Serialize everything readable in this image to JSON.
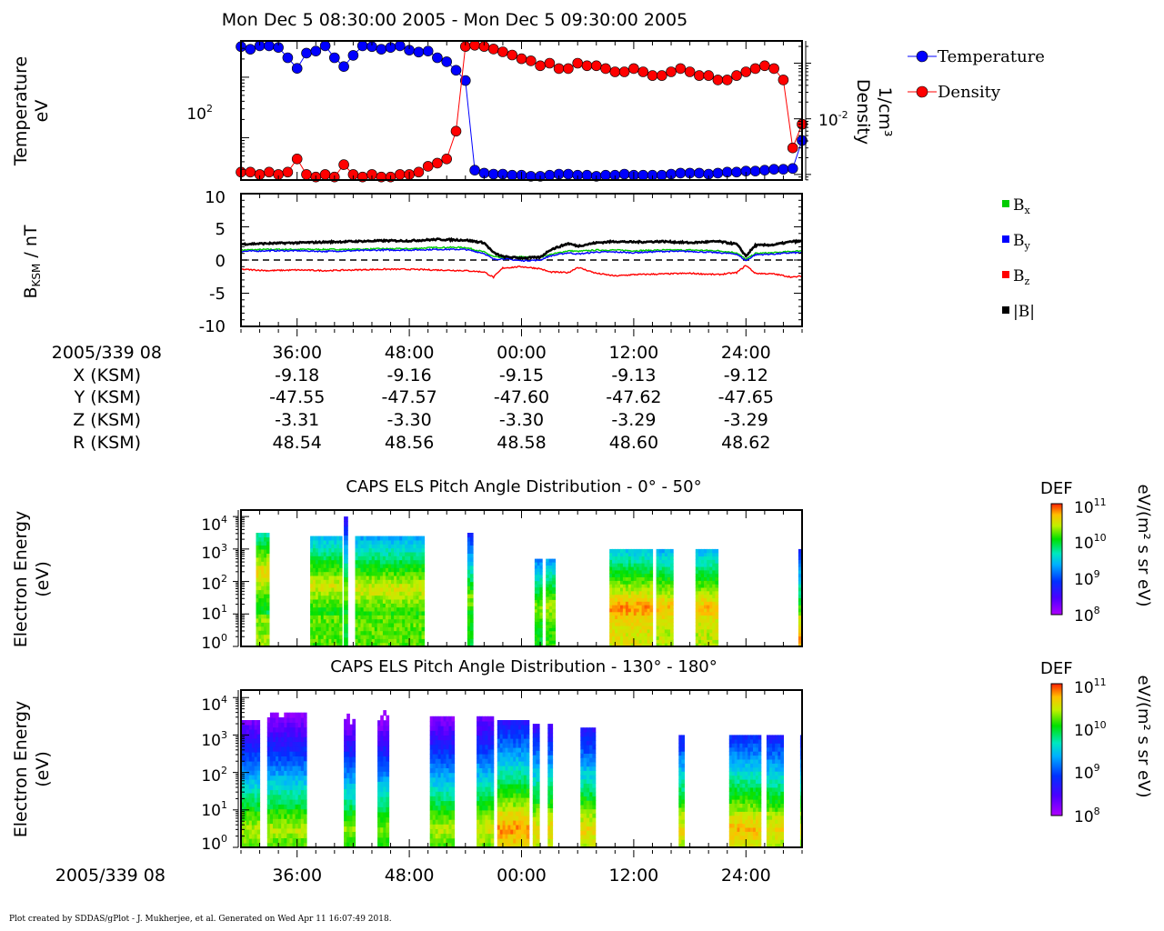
{
  "title": "Mon Dec 5 08:30:00 2005 - Mon Dec 5 09:30:00 2005",
  "footer": "Plot created by SDDAS/gPlot - J. Mukherjee, et al.  Generated on Wed Apr 11 16:07:49 2018.",
  "colors": {
    "temperature": "#0000ff",
    "density": "#ff0000",
    "bx": "#00cc00",
    "by": "#0000ff",
    "bz": "#ff0000",
    "btot": "#000000"
  },
  "panel_moments": {
    "ylabel_left": [
      "Temperature",
      "eV"
    ],
    "ylabel_right": [
      "Density",
      "1/cm³"
    ],
    "left_tick": {
      "base": "10",
      "exp": "2"
    },
    "right_tick": {
      "base": "10",
      "exp": "-2"
    },
    "legend": [
      "Temperature",
      "Density"
    ]
  },
  "panel_mag": {
    "ylabel": "B",
    "ylabel_sub": "KSM",
    "ylabel_unit": " / nT",
    "yticks": [
      "10",
      "5",
      "0",
      "-5",
      "-10"
    ],
    "legend": [
      {
        "text": "B",
        "sub": "x",
        "color_key": "bx"
      },
      {
        "text": "B",
        "sub": "y",
        "color_key": "by"
      },
      {
        "text": "B",
        "sub": "z",
        "color_key": "bz"
      },
      {
        "text": "|B|",
        "sub": "",
        "color_key": "btot"
      }
    ]
  },
  "ephemeris": {
    "rows": [
      {
        "label": "2005/339 08",
        "values": [
          "36:00",
          "48:00",
          "00:00",
          "12:00",
          "24:00"
        ]
      },
      {
        "label": "X (KSM)",
        "values": [
          "-9.18",
          "-9.16",
          "-9.15",
          "-9.13",
          "-9.12"
        ]
      },
      {
        "label": "Y (KSM)",
        "values": [
          "-47.55",
          "-47.57",
          "-47.60",
          "-47.62",
          "-47.65"
        ]
      },
      {
        "label": "Z (KSM)",
        "values": [
          "-3.31",
          "-3.30",
          "-3.30",
          "-3.29",
          "-3.29"
        ]
      },
      {
        "label": "R (KSM)",
        "values": [
          "48.54",
          "48.56",
          "48.58",
          "48.60",
          "48.62"
        ]
      }
    ]
  },
  "spec1": {
    "title": "CAPS ELS Pitch Angle Distribution - 0° - 50°",
    "ylabel": [
      "Electron Energy",
      "(eV)"
    ],
    "yticks": [
      {
        "b": "10",
        "e": "4"
      },
      {
        "b": "10",
        "e": "3"
      },
      {
        "b": "10",
        "e": "2"
      },
      {
        "b": "10",
        "e": "1"
      },
      {
        "b": "10",
        "e": "0"
      }
    ],
    "colorbar_title": "DEF",
    "colorbar_unit": "eV/(m² s sr eV)",
    "colorbar_ticks": [
      {
        "b": "10",
        "e": "11"
      },
      {
        "b": "10",
        "e": "10"
      },
      {
        "b": "10",
        "e": "9"
      },
      {
        "b": "10",
        "e": "8"
      }
    ]
  },
  "spec2": {
    "title": "CAPS ELS Pitch Angle Distribution - 130° - 180°",
    "ylabel": [
      "Electron Energy",
      "(eV)"
    ],
    "yticks": [
      {
        "b": "10",
        "e": "4"
      },
      {
        "b": "10",
        "e": "3"
      },
      {
        "b": "10",
        "e": "2"
      },
      {
        "b": "10",
        "e": "1"
      },
      {
        "b": "10",
        "e": "0"
      }
    ],
    "colorbar_title": "DEF",
    "colorbar_unit": "eV/(m² s sr eV)",
    "colorbar_ticks": [
      {
        "b": "10",
        "e": "11"
      },
      {
        "b": "10",
        "e": "10"
      },
      {
        "b": "10",
        "e": "9"
      },
      {
        "b": "10",
        "e": "8"
      }
    ]
  },
  "bottom_axis": {
    "label": "2005/339 08",
    "ticks": [
      "36:00",
      "48:00",
      "00:00",
      "12:00",
      "24:00"
    ]
  },
  "chart_data": [
    {
      "type": "scatter",
      "xlim_min": [
        30,
        90
      ],
      "x_tick_minutes": [
        36,
        48,
        60,
        72,
        84
      ],
      "series": [
        {
          "name": "Temperature",
          "log_scale": true,
          "x": [
            30,
            31,
            32,
            33,
            34,
            35,
            36,
            37,
            38,
            39,
            40,
            41,
            42,
            43,
            44,
            45,
            46,
            47,
            48,
            49,
            50,
            51,
            52,
            53,
            54,
            55,
            56,
            57,
            58,
            59,
            60,
            61,
            62,
            63,
            64,
            65,
            66,
            67,
            68,
            69,
            70,
            71,
            72,
            73,
            74,
            75,
            76,
            77,
            78,
            79,
            80,
            81,
            82,
            83,
            84,
            85,
            86,
            87,
            88,
            89,
            90
          ],
          "values": [
            3200,
            2900,
            3300,
            3300,
            3100,
            2100,
            1400,
            2500,
            2700,
            3300,
            2100,
            1500,
            2300,
            3300,
            3200,
            2900,
            3100,
            3300,
            2800,
            2600,
            2700,
            2100,
            1800,
            1300,
            880,
            29,
            26,
            25,
            25,
            24,
            24,
            23,
            23,
            24,
            25,
            25,
            24,
            24,
            23,
            24,
            24,
            25,
            24,
            24,
            24,
            24,
            25,
            26,
            26,
            26,
            25,
            26,
            27,
            27,
            28,
            28,
            29,
            30,
            30,
            31,
            90
          ]
        },
        {
          "name": "Density",
          "log_scale": true,
          "x": [
            30,
            31,
            32,
            33,
            34,
            35,
            36,
            37,
            38,
            39,
            40,
            41,
            42,
            43,
            44,
            45,
            46,
            47,
            48,
            49,
            50,
            51,
            52,
            53,
            54,
            55,
            56,
            57,
            58,
            59,
            60,
            61,
            62,
            63,
            64,
            65,
            66,
            67,
            68,
            69,
            70,
            71,
            72,
            73,
            74,
            75,
            76,
            77,
            78,
            79,
            80,
            81,
            82,
            83,
            84,
            85,
            86,
            87,
            88,
            89,
            90
          ],
          "values": [
            0.0011,
            0.0011,
            0.001,
            0.0011,
            0.001,
            0.0011,
            0.0019,
            0.001,
            0.0009,
            0.001,
            0.0009,
            0.0015,
            0.001,
            0.0009,
            0.001,
            0.0009,
            0.0009,
            0.001,
            0.001,
            0.0011,
            0.0014,
            0.0016,
            0.0019,
            0.006,
            0.2,
            0.21,
            0.2,
            0.18,
            0.16,
            0.14,
            0.12,
            0.11,
            0.09,
            0.1,
            0.08,
            0.08,
            0.1,
            0.09,
            0.09,
            0.08,
            0.07,
            0.07,
            0.08,
            0.07,
            0.06,
            0.06,
            0.07,
            0.08,
            0.07,
            0.06,
            0.06,
            0.05,
            0.05,
            0.06,
            0.07,
            0.08,
            0.09,
            0.08,
            0.05,
            0.003,
            0.008
          ]
        }
      ],
      "ylabel": "Temperature eV / Density 1/cm3"
    },
    {
      "type": "line",
      "xlim_min": [
        30,
        90
      ],
      "ylim": [
        -10,
        10
      ],
      "x": [
        30,
        33,
        36,
        39,
        42,
        45,
        48,
        51,
        54,
        56,
        57,
        58,
        60,
        62,
        63,
        65,
        66,
        68,
        70,
        72,
        75,
        78,
        81,
        83,
        84,
        85,
        87,
        89,
        90
      ],
      "series": [
        {
          "name": "Bx",
          "values": [
            1.5,
            1.6,
            1.6,
            1.6,
            1.6,
            1.7,
            1.7,
            1.9,
            1.9,
            1.2,
            0.5,
            0.3,
            0.5,
            0.4,
            0.8,
            1.4,
            1.3,
            1.5,
            1.5,
            1.4,
            1.5,
            1.5,
            1.4,
            1.1,
            0.1,
            1.0,
            1.1,
            1.3,
            1.4
          ]
        },
        {
          "name": "By",
          "values": [
            1.3,
            1.4,
            1.4,
            1.3,
            1.4,
            1.5,
            1.5,
            1.6,
            1.6,
            1.0,
            0.1,
            0.2,
            -0.1,
            0.0,
            0.6,
            1.1,
            0.9,
            1.2,
            1.2,
            1.1,
            1.3,
            1.3,
            1.1,
            0.9,
            -0.1,
            0.8,
            0.9,
            1.1,
            1.1
          ]
        },
        {
          "name": "Bz",
          "values": [
            -1.4,
            -1.6,
            -1.5,
            -1.6,
            -1.5,
            -1.4,
            -1.4,
            -1.5,
            -1.6,
            -1.8,
            -2.6,
            -1.2,
            -1.0,
            -1.3,
            -1.8,
            -1.9,
            -1.1,
            -2.0,
            -2.4,
            -2.2,
            -2.1,
            -2.0,
            -2.2,
            -1.9,
            -0.8,
            -2.0,
            -2.1,
            -2.6,
            -2.4
          ]
        },
        {
          "name": "|B|",
          "values": [
            2.4,
            2.5,
            2.6,
            2.7,
            2.8,
            2.9,
            2.9,
            3.1,
            3.0,
            2.6,
            1.1,
            0.5,
            0.3,
            0.4,
            1.5,
            2.5,
            2.1,
            2.6,
            2.8,
            2.7,
            2.8,
            2.6,
            2.8,
            2.4,
            0.6,
            2.2,
            2.3,
            2.8,
            2.8
          ]
        }
      ],
      "reference_line": 0
    },
    {
      "type": "heatmap",
      "title": "CAPS ELS Pitch Angle Distribution - 0° - 50°",
      "xlim_min": [
        30,
        90
      ],
      "ylim_log10_eV": [
        0,
        4.2
      ],
      "colorbar_log10": [
        8,
        11
      ],
      "blocks": [
        {
          "x0": 31.6,
          "x1": 33.0,
          "lo": 0,
          "hi": 3.5,
          "peak": 2.3,
          "max": 10.6
        },
        {
          "x0": 37.4,
          "x1": 40.8,
          "lo": 0,
          "hi": 3.4,
          "peak": 1.9,
          "max": 10.5
        },
        {
          "x0": 41.0,
          "x1": 41.4,
          "lo": 0,
          "hi": 4.0,
          "peak": 1.7,
          "max": 10.3
        },
        {
          "x0": 42.2,
          "x1": 49.6,
          "lo": 0,
          "hi": 3.4,
          "peak": 1.8,
          "max": 10.5
        },
        {
          "x0": 54.2,
          "x1": 54.8,
          "lo": 0,
          "hi": 3.5,
          "peak": 1.5,
          "max": 10.3
        },
        {
          "x0": 61.4,
          "x1": 62.2,
          "lo": 0,
          "hi": 2.7,
          "peak": 1.2,
          "max": 10.3
        },
        {
          "x0": 62.6,
          "x1": 63.6,
          "lo": 0,
          "hi": 2.7,
          "peak": 1.2,
          "max": 10.4
        },
        {
          "x0": 69.4,
          "x1": 74.0,
          "lo": 0,
          "hi": 3.0,
          "peak": 1.2,
          "max": 10.8
        },
        {
          "x0": 74.4,
          "x1": 76.2,
          "lo": 0,
          "hi": 3.0,
          "peak": 1.2,
          "max": 10.7
        },
        {
          "x0": 78.6,
          "x1": 81.0,
          "lo": 0,
          "hi": 3.0,
          "peak": 1.2,
          "max": 10.7
        },
        {
          "x0": 89.6,
          "x1": 89.9,
          "lo": 0,
          "hi": 3.0,
          "peak": 0.3,
          "max": 10.8
        }
      ]
    },
    {
      "type": "heatmap",
      "title": "CAPS ELS Pitch Angle Distribution - 130° - 180°",
      "xlim_min": [
        30,
        90
      ],
      "ylim_log10_eV": [
        0,
        4.2
      ],
      "colorbar_log10": [
        8,
        11
      ],
      "blocks": [
        {
          "x0": 30.0,
          "x1": 32.0,
          "lo": 0,
          "hi": 3.4,
          "peak": 0.5,
          "max": 10.4
        },
        {
          "x0": 32.8,
          "x1": 37.0,
          "lo": 0,
          "hi": 3.6,
          "peak": 0.5,
          "max": 10.4
        },
        {
          "x0": 41.0,
          "x1": 42.2,
          "lo": 0,
          "hi": 4.0,
          "peak": 0.5,
          "max": 10.3
        },
        {
          "x0": 44.6,
          "x1": 45.8,
          "lo": 0,
          "hi": 3.8,
          "peak": 0.5,
          "max": 10.3
        },
        {
          "x0": 50.2,
          "x1": 52.8,
          "lo": 0,
          "hi": 3.5,
          "peak": 0.5,
          "max": 10.4
        },
        {
          "x0": 55.2,
          "x1": 57.0,
          "lo": 0,
          "hi": 3.5,
          "peak": 0.5,
          "max": 10.5
        },
        {
          "x0": 57.4,
          "x1": 60.8,
          "lo": 0,
          "hi": 3.4,
          "peak": 0.5,
          "max": 10.8
        },
        {
          "x0": 61.2,
          "x1": 61.9,
          "lo": 0,
          "hi": 3.3,
          "peak": 0.5,
          "max": 10.6
        },
        {
          "x0": 62.8,
          "x1": 63.3,
          "lo": 0,
          "hi": 3.3,
          "peak": 0.5,
          "max": 10.6
        },
        {
          "x0": 66.3,
          "x1": 67.9,
          "lo": 0,
          "hi": 3.2,
          "peak": 0.5,
          "max": 10.6
        },
        {
          "x0": 76.8,
          "x1": 77.4,
          "lo": 0,
          "hi": 3.0,
          "peak": 0.5,
          "max": 10.6
        },
        {
          "x0": 82.2,
          "x1": 85.6,
          "lo": 0,
          "hi": 3.0,
          "peak": 0.5,
          "max": 10.7
        },
        {
          "x0": 86.2,
          "x1": 88.0,
          "lo": 0,
          "hi": 3.0,
          "peak": 0.5,
          "max": 10.6
        },
        {
          "x0": 89.8,
          "x1": 90.0,
          "lo": 0,
          "hi": 3.0,
          "peak": 0.5,
          "max": 10.5
        }
      ]
    }
  ]
}
